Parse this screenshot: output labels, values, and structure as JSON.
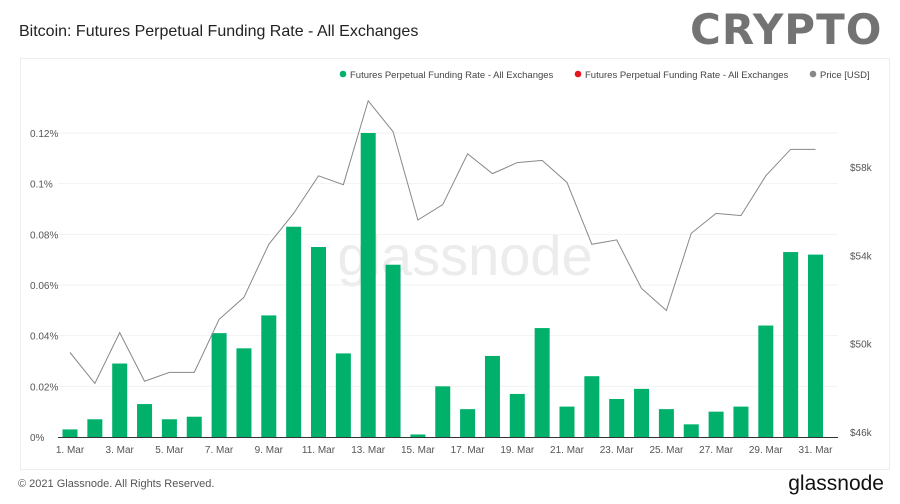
{
  "header": {
    "title": "Bitcoin: Futures Perpetual Funding Rate - All Exchanges",
    "watermark_overlay": "CRYPTO"
  },
  "footer": {
    "copyright": "© 2021 Glassnode. All Rights Reserved.",
    "logo": "glassnode"
  },
  "chart_data": {
    "type": "bar",
    "title": "Bitcoin: Futures Perpetual Funding Rate - All Exchanges",
    "watermark": "glassnode",
    "legend_position": "top-right",
    "legend": [
      {
        "label": "Futures Perpetual Funding Rate - All Exchanges",
        "color": "#00b06b"
      },
      {
        "label": "Futures Perpetual Funding Rate - All Exchanges",
        "color": "#e8141e"
      },
      {
        "label": "Price [USD]",
        "color": "#888888"
      }
    ],
    "categories": [
      "1. Mar",
      "2. Mar",
      "3. Mar",
      "4. Mar",
      "5. Mar",
      "6. Mar",
      "7. Mar",
      "8. Mar",
      "9. Mar",
      "10. Mar",
      "11. Mar",
      "12. Mar",
      "13. Mar",
      "14. Mar",
      "15. Mar",
      "16. Mar",
      "17. Mar",
      "18. Mar",
      "19. Mar",
      "20. Mar",
      "21. Mar",
      "22. Mar",
      "23. Mar",
      "24. Mar",
      "25. Mar",
      "26. Mar",
      "27. Mar",
      "28. Mar",
      "29. Mar",
      "30. Mar",
      "31. Mar"
    ],
    "x_tick_labels": [
      "1. Mar",
      "3. Mar",
      "5. Mar",
      "7. Mar",
      "9. Mar",
      "11. Mar",
      "13. Mar",
      "15. Mar",
      "17. Mar",
      "19. Mar",
      "21. Mar",
      "23. Mar",
      "25. Mar",
      "27. Mar",
      "29. Mar",
      "31. Mar"
    ],
    "series": [
      {
        "name": "Futures Perpetual Funding Rate - All Exchanges",
        "type": "bar",
        "color": "#00b06b",
        "unit": "%",
        "values": [
          0.003,
          0.007,
          0.029,
          0.013,
          0.007,
          0.008,
          0.041,
          0.035,
          0.048,
          0.083,
          0.075,
          0.033,
          0.12,
          0.068,
          0.001,
          0.02,
          0.011,
          0.032,
          0.017,
          0.043,
          0.012,
          0.024,
          0.015,
          0.019,
          0.011,
          0.005,
          0.01,
          0.012,
          0.044,
          0.073,
          0.072
        ]
      },
      {
        "name": "Price [USD]",
        "type": "line",
        "color": "#888888",
        "axis": "right",
        "values": [
          49600,
          48200,
          50500,
          48300,
          48700,
          48700,
          51100,
          52100,
          54500,
          55900,
          57600,
          57200,
          61000,
          59600,
          55600,
          56300,
          58600,
          57700,
          58200,
          58300,
          57300,
          54500,
          54700,
          52500,
          51500,
          55000,
          55900,
          55800,
          57600,
          58800,
          58800
        ]
      }
    ],
    "y_left": {
      "ticks": [
        "0%",
        "0.02%",
        "0.04%",
        "0.06%",
        "0.08%",
        "0.1%",
        "0.12%"
      ],
      "tick_values": [
        0,
        0.02,
        0.04,
        0.06,
        0.08,
        0.1,
        0.12
      ],
      "ylim": [
        0,
        0.12
      ]
    },
    "y_right": {
      "ticks": [
        "$46k",
        "$50k",
        "$54k",
        "$58k"
      ],
      "tick_values": [
        46000,
        50000,
        54000,
        58000
      ],
      "ylim": [
        46000,
        58000
      ]
    },
    "grid": true
  }
}
